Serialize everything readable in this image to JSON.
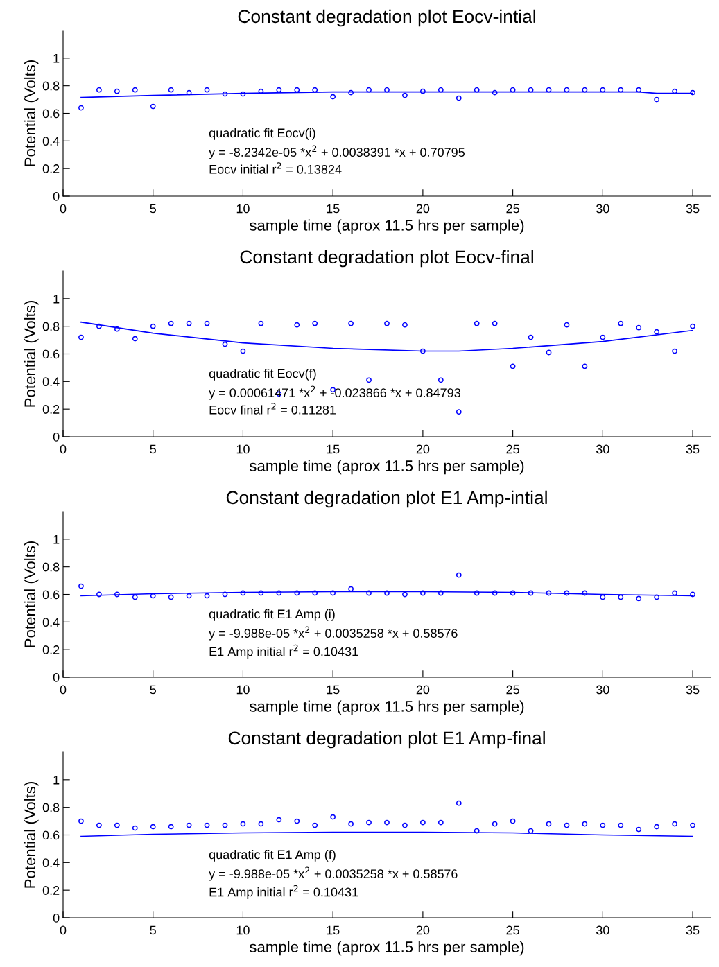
{
  "chart_data": [
    {
      "type": "scatter",
      "title": "Constant degradation plot Eocv-intial",
      "xlabel": "sample time (aprox 11.5 hrs per sample)",
      "ylabel": "Potential (Volts)",
      "xlim": [
        0,
        36
      ],
      "ylim": [
        0,
        1.2
      ],
      "xticks": [
        0,
        5,
        10,
        15,
        20,
        25,
        30,
        35
      ],
      "yticks": [
        0,
        0.2,
        0.4,
        0.6,
        0.8,
        1
      ],
      "grid": false,
      "legend": false,
      "x": [
        1,
        2,
        3,
        4,
        5,
        6,
        7,
        8,
        9,
        10,
        11,
        12,
        13,
        14,
        15,
        16,
        17,
        18,
        19,
        20,
        21,
        22,
        23,
        24,
        25,
        26,
        27,
        28,
        29,
        30,
        31,
        32,
        33,
        34,
        35
      ],
      "series": [
        {
          "type": "scatter",
          "marker": "circle",
          "color": "#0000ff",
          "values": [
            0.64,
            0.77,
            0.76,
            0.77,
            0.65,
            0.77,
            0.75,
            0.77,
            0.74,
            0.74,
            0.76,
            0.77,
            0.77,
            0.77,
            0.72,
            0.75,
            0.77,
            0.77,
            0.73,
            0.76,
            0.77,
            0.71,
            0.77,
            0.75,
            0.77,
            0.77,
            0.77,
            0.77,
            0.77,
            0.77,
            0.77,
            0.77,
            0.7,
            0.76,
            0.75
          ]
        },
        {
          "type": "line",
          "marker": "none",
          "color": "#0000ff",
          "x": [
            1,
            5,
            10,
            15,
            20,
            25,
            30,
            32,
            33,
            35
          ],
          "values": [
            0.715,
            0.73,
            0.745,
            0.755,
            0.755,
            0.755,
            0.755,
            0.755,
            0.745,
            0.745
          ]
        }
      ],
      "annotations": [
        "quadratic fit Eocv(i)",
        "y = -8.2342e-05 *x$^{2}$ + 0.0038391 *x + 0.70795",
        "Eocv initial r$^{2}$ = 0.13824"
      ]
    },
    {
      "type": "scatter",
      "title": "Constant degradation plot Eocv-final",
      "xlabel": "sample time (aprox 11.5 hrs per sample)",
      "ylabel": "Potential (Volts)",
      "xlim": [
        0,
        36
      ],
      "ylim": [
        0,
        1.2
      ],
      "xticks": [
        0,
        5,
        10,
        15,
        20,
        25,
        30,
        35
      ],
      "yticks": [
        0,
        0.2,
        0.4,
        0.6,
        0.8,
        1
      ],
      "grid": false,
      "legend": false,
      "x": [
        1,
        2,
        3,
        4,
        5,
        6,
        7,
        8,
        9,
        10,
        11,
        12,
        13,
        14,
        15,
        16,
        17,
        18,
        19,
        20,
        21,
        22,
        23,
        24,
        25,
        26,
        27,
        28,
        29,
        30,
        31,
        32,
        33,
        34,
        35
      ],
      "series": [
        {
          "type": "scatter",
          "marker": "circle",
          "color": "#0000ff",
          "values": [
            0.72,
            0.8,
            0.78,
            0.71,
            0.8,
            0.82,
            0.82,
            0.82,
            0.67,
            0.62,
            0.82,
            0.31,
            0.81,
            0.82,
            0.34,
            0.82,
            0.41,
            0.82,
            0.81,
            0.62,
            0.41,
            0.18,
            0.82,
            0.82,
            0.51,
            0.72,
            0.61,
            0.81,
            0.51,
            0.72,
            0.82,
            0.79,
            0.76,
            0.62,
            0.8
          ]
        },
        {
          "type": "line",
          "marker": "none",
          "color": "#0000ff",
          "x": [
            1,
            5,
            10,
            15,
            20,
            22,
            25,
            30,
            35
          ],
          "values": [
            0.83,
            0.75,
            0.68,
            0.64,
            0.62,
            0.62,
            0.64,
            0.69,
            0.77
          ]
        }
      ],
      "annotations": [
        "quadratic fit Eocv(f)",
        "y = 0.00061471 *x$^{2}$ + -0.023866 *x + 0.84793",
        "Eocv final r$^{2}$ = 0.11281"
      ]
    },
    {
      "type": "scatter",
      "title": "Constant degradation plot E1 Amp-intial",
      "xlabel": "sample time (aprox 11.5 hrs per sample)",
      "ylabel": "Potential (Volts)",
      "xlim": [
        0,
        36
      ],
      "ylim": [
        0,
        1.2
      ],
      "xticks": [
        0,
        5,
        10,
        15,
        20,
        25,
        30,
        35
      ],
      "yticks": [
        0,
        0.2,
        0.4,
        0.6,
        0.8,
        1
      ],
      "grid": false,
      "legend": false,
      "x": [
        1,
        2,
        3,
        4,
        5,
        6,
        7,
        8,
        9,
        10,
        11,
        12,
        13,
        14,
        15,
        16,
        17,
        18,
        19,
        20,
        21,
        22,
        23,
        24,
        25,
        26,
        27,
        28,
        29,
        30,
        31,
        32,
        33,
        34,
        35
      ],
      "series": [
        {
          "type": "scatter",
          "marker": "circle",
          "color": "#0000ff",
          "values": [
            0.66,
            0.6,
            0.6,
            0.58,
            0.59,
            0.58,
            0.59,
            0.59,
            0.6,
            0.61,
            0.61,
            0.61,
            0.61,
            0.61,
            0.61,
            0.64,
            0.61,
            0.61,
            0.6,
            0.61,
            0.61,
            0.74,
            0.61,
            0.61,
            0.61,
            0.61,
            0.61,
            0.61,
            0.61,
            0.58,
            0.58,
            0.57,
            0.58,
            0.61,
            0.6
          ]
        },
        {
          "type": "line",
          "marker": "none",
          "color": "#0000ff",
          "x": [
            1,
            5,
            10,
            15,
            20,
            25,
            30,
            35
          ],
          "values": [
            0.59,
            0.605,
            0.615,
            0.62,
            0.62,
            0.615,
            0.6,
            0.59
          ]
        }
      ],
      "annotations": [
        "quadratic fit E1 Amp (i)",
        "y = -9.988e-05 *x$^{2}$ + 0.0035258 *x + 0.58576",
        "E1 Amp initial r$^{2}$ = 0.10431"
      ]
    },
    {
      "type": "scatter",
      "title": "Constant degradation plot E1 Amp-final",
      "xlabel": "sample time (aprox 11.5 hrs per sample)",
      "ylabel": "Potential (Volts)",
      "xlim": [
        0,
        36
      ],
      "ylim": [
        0,
        1.2
      ],
      "xticks": [
        0,
        5,
        10,
        15,
        20,
        25,
        30,
        35
      ],
      "yticks": [
        0,
        0.2,
        0.4,
        0.6,
        0.8,
        1
      ],
      "grid": false,
      "legend": false,
      "x": [
        1,
        2,
        3,
        4,
        5,
        6,
        7,
        8,
        9,
        10,
        11,
        12,
        13,
        14,
        15,
        16,
        17,
        18,
        19,
        20,
        21,
        22,
        23,
        24,
        25,
        26,
        27,
        28,
        29,
        30,
        31,
        32,
        33,
        34,
        35
      ],
      "series": [
        {
          "type": "scatter",
          "marker": "circle",
          "color": "#0000ff",
          "values": [
            0.7,
            0.67,
            0.67,
            0.65,
            0.66,
            0.66,
            0.67,
            0.67,
            0.67,
            0.68,
            0.68,
            0.71,
            0.7,
            0.67,
            0.73,
            0.68,
            0.69,
            0.69,
            0.67,
            0.69,
            0.69,
            0.83,
            0.63,
            0.68,
            0.7,
            0.63,
            0.68,
            0.67,
            0.68,
            0.67,
            0.67,
            0.64,
            0.66,
            0.68,
            0.67
          ]
        },
        {
          "type": "line",
          "marker": "none",
          "color": "#0000ff",
          "x": [
            1,
            5,
            10,
            15,
            20,
            25,
            30,
            35
          ],
          "values": [
            0.59,
            0.605,
            0.615,
            0.62,
            0.62,
            0.615,
            0.6,
            0.59
          ]
        }
      ],
      "annotations": [
        "quadratic fit E1 Amp (f)",
        "y = -9.988e-05 *x$^{2}$ + 0.0035258 *x + 0.58576",
        "E1 Amp initial r$^{2}$ = 0.10431"
      ]
    }
  ]
}
